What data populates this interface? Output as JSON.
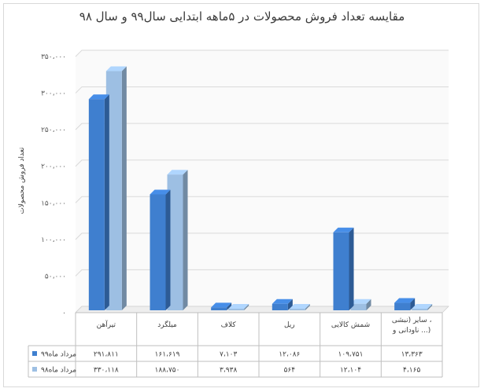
{
  "chart_data": {
    "type": "bar",
    "title": "مقایسه تعداد فروش محصولات در ۵ماهه ابتدایی سال۹۹ و سال ۹۸",
    "ylabel": "تعداد فروش محصولات",
    "xlabel": "",
    "ylim": [
      0,
      350000
    ],
    "y_ticks": [
      "۳۵۰،۰۰۰",
      "۳۰۰،۰۰۰",
      "۲۵۰،۰۰۰",
      "۲۰۰،۰۰۰",
      "۱۵۰،۰۰۰",
      "۱۰۰،۰۰۰",
      "۵۰،۰۰۰",
      "۰"
    ],
    "y_tick_values": [
      350000,
      300000,
      250000,
      200000,
      150000,
      100000,
      50000,
      0
    ],
    "categories": [
      "تیرآهن",
      "میلگرد",
      "کلاف",
      "ریل",
      "شمش کالایی",
      "سایر (نبشی ، ناودانی و ...)"
    ],
    "category_lines": [
      [
        "تیرآهن"
      ],
      [
        "میلگرد"
      ],
      [
        "کلاف"
      ],
      [
        "ریل"
      ],
      [
        "شمش کالایی"
      ],
      [
        "سایر (نبشی ،",
        "ناودانی و ...)"
      ]
    ],
    "series": [
      {
        "name": "مرداد ماه۹۹",
        "color": "#3f7fcf",
        "values": [
          291811,
          161619,
          7103,
          12086,
          109751,
          13363
        ],
        "labels": [
          "۲۹۱،۸۱۱",
          "۱۶۱،۶۱۹",
          "۷،۱۰۳",
          "۱۲،۰۸۶",
          "۱۰۹،۷۵۱",
          "۱۳،۳۶۳"
        ]
      },
      {
        "name": "مرداد ماه۹۸",
        "color": "#9dbfe3",
        "values": [
          330118,
          188750,
          3938,
          564,
          12104,
          4165
        ],
        "labels": [
          "۳۳۰،۱۱۸",
          "۱۸۸،۷۵۰",
          "۳،۹۳۸",
          "۵۶۴",
          "۱۲،۱۰۴",
          "۴،۱۶۵"
        ]
      }
    ],
    "grid": true,
    "legend": "data-table",
    "style": "3d-column"
  }
}
